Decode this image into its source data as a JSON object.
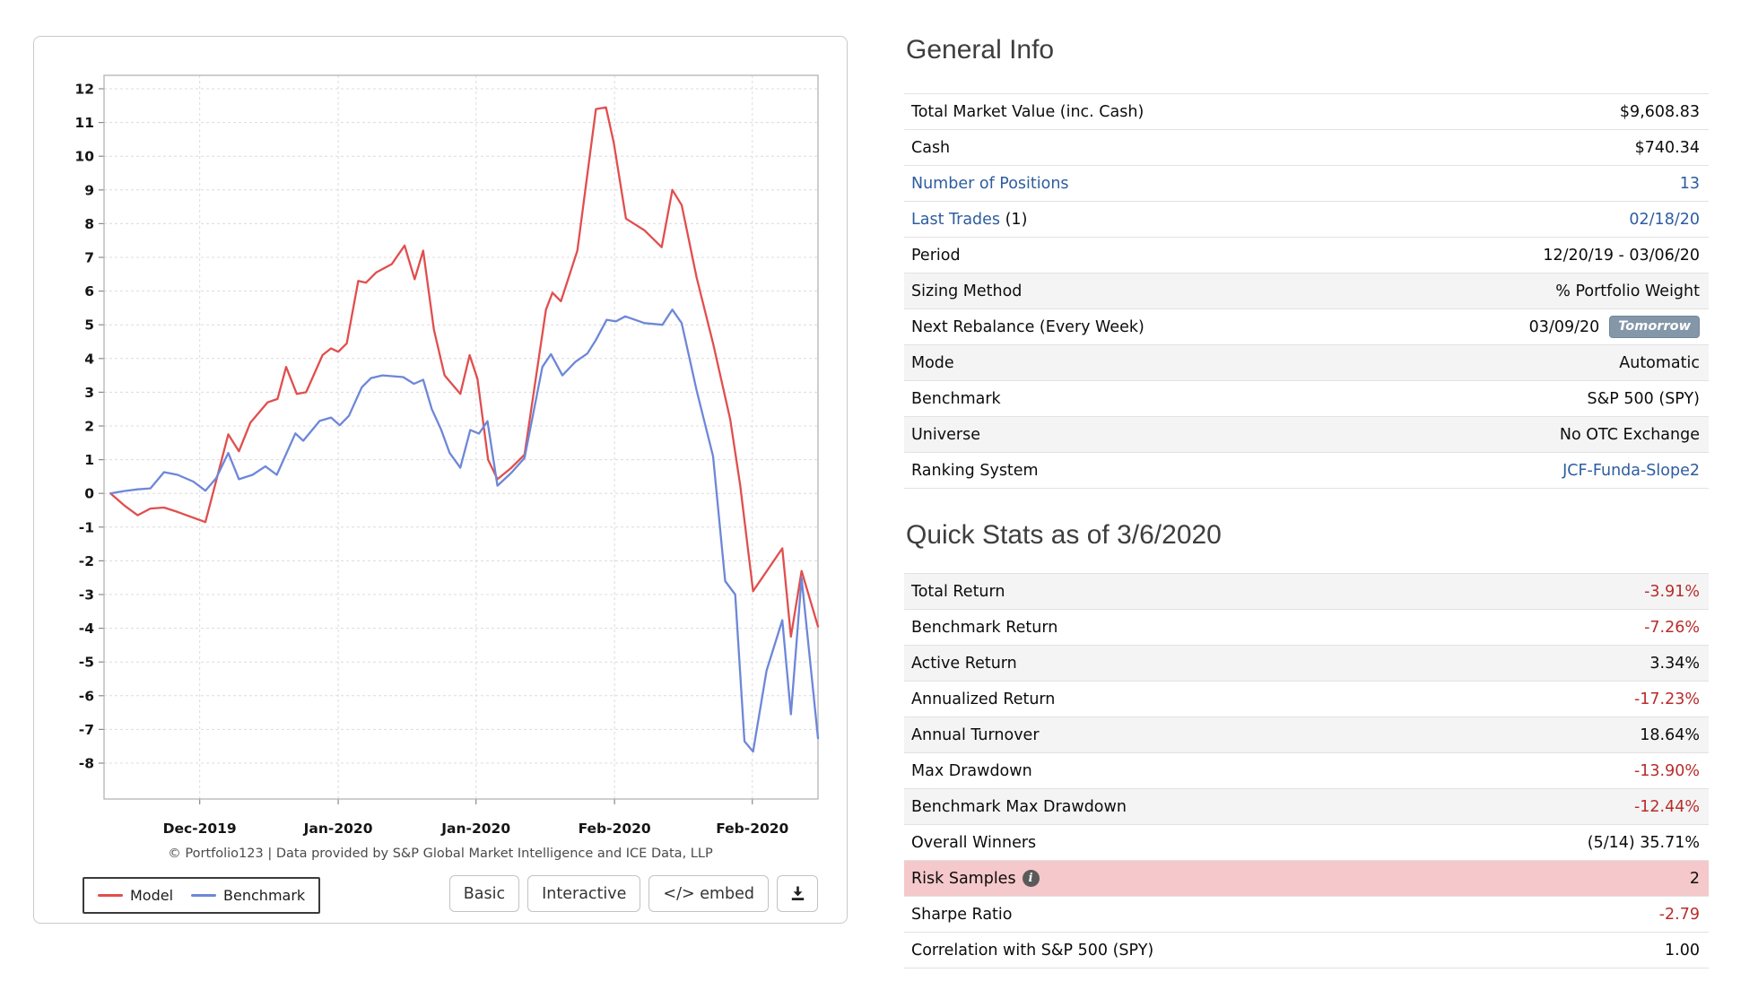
{
  "colors": {
    "model_line": "#e14e4e",
    "benchmark_line": "#6d87d8",
    "link_blue": "#2d5d9f",
    "negative_red": "#b92c2c",
    "risk_row_pink": "#f5c8cb",
    "badge_slate": "#8497a9"
  },
  "chart": {
    "footer": "© Portfolio123 | Data provided by S&P Global Market Intelligence and ICE Data, LLP",
    "legend": [
      {
        "label": "Model",
        "color": "#e14e4e"
      },
      {
        "label": "Benchmark",
        "color": "#6d87d8"
      }
    ],
    "buttons": {
      "basic": "Basic",
      "interactive": "Interactive",
      "embed": "</> embed",
      "download": "download"
    }
  },
  "chart_data": {
    "type": "line",
    "title": "",
    "ylim": [
      -8,
      12
    ],
    "y_tick_step": 1,
    "grid": "dashed",
    "legend_position": "bottom-left",
    "x_ticks": [
      {
        "pos_pct": 13.4,
        "label": "Dec-2019"
      },
      {
        "pos_pct": 32.8,
        "label": "Jan-2020"
      },
      {
        "pos_pct": 52.1,
        "label": "Jan-2020"
      },
      {
        "pos_pct": 71.5,
        "label": "Feb-2020"
      },
      {
        "pos_pct": 90.8,
        "label": "Feb-2020"
      }
    ],
    "series": [
      {
        "name": "Model",
        "color": "#e14e4e",
        "points": [
          [
            0.9,
            0
          ],
          [
            2.8,
            -0.35
          ],
          [
            4.7,
            -0.65
          ],
          [
            6.5,
            -0.45
          ],
          [
            8.4,
            -0.42
          ],
          [
            10.3,
            -0.55
          ],
          [
            12.5,
            -0.72
          ],
          [
            14.2,
            -0.85
          ],
          [
            17.4,
            1.75
          ],
          [
            18.9,
            1.25
          ],
          [
            20.5,
            2.1
          ],
          [
            22.9,
            2.7
          ],
          [
            24.3,
            2.8
          ],
          [
            25.5,
            3.75
          ],
          [
            27.0,
            2.95
          ],
          [
            28.3,
            3.0
          ],
          [
            30.6,
            4.1
          ],
          [
            31.8,
            4.3
          ],
          [
            32.8,
            4.2
          ],
          [
            34.0,
            4.45
          ],
          [
            35.6,
            6.3
          ],
          [
            36.7,
            6.25
          ],
          [
            38.1,
            6.55
          ],
          [
            40.3,
            6.8
          ],
          [
            42.1,
            7.35
          ],
          [
            43.5,
            6.35
          ],
          [
            44.7,
            7.2
          ],
          [
            46.2,
            4.85
          ],
          [
            47.7,
            3.5
          ],
          [
            49.9,
            2.95
          ],
          [
            51.2,
            4.1
          ],
          [
            52.3,
            3.4
          ],
          [
            53.8,
            1.0
          ],
          [
            55.1,
            0.42
          ],
          [
            57.0,
            0.75
          ],
          [
            58.9,
            1.15
          ],
          [
            61.9,
            5.45
          ],
          [
            62.8,
            5.95
          ],
          [
            64.0,
            5.7
          ],
          [
            66.3,
            7.2
          ],
          [
            68.9,
            11.4
          ],
          [
            70.3,
            11.45
          ],
          [
            71.4,
            10.4
          ],
          [
            73.1,
            8.15
          ],
          [
            75.7,
            7.8
          ],
          [
            78.1,
            7.3
          ],
          [
            79.6,
            9.0
          ],
          [
            80.9,
            8.55
          ],
          [
            83.0,
            6.4
          ],
          [
            85.3,
            4.45
          ],
          [
            87.7,
            2.2
          ],
          [
            89.1,
            0.25
          ],
          [
            90.9,
            -2.9
          ],
          [
            95.0,
            -1.63
          ],
          [
            96.2,
            -4.25
          ],
          [
            97.7,
            -2.3
          ],
          [
            100,
            -3.95
          ]
        ]
      },
      {
        "name": "Benchmark",
        "color": "#6d87d8",
        "points": [
          [
            0.9,
            0
          ],
          [
            2.8,
            0.07
          ],
          [
            4.7,
            0.12
          ],
          [
            6.5,
            0.15
          ],
          [
            8.4,
            0.63
          ],
          [
            10.3,
            0.55
          ],
          [
            12.5,
            0.35
          ],
          [
            14.2,
            0.08
          ],
          [
            15.7,
            0.45
          ],
          [
            17.4,
            1.2
          ],
          [
            18.9,
            0.42
          ],
          [
            20.8,
            0.55
          ],
          [
            22.6,
            0.8
          ],
          [
            24.2,
            0.55
          ],
          [
            26.8,
            1.78
          ],
          [
            27.9,
            1.56
          ],
          [
            30.2,
            2.15
          ],
          [
            31.8,
            2.25
          ],
          [
            33.0,
            2.02
          ],
          [
            34.3,
            2.3
          ],
          [
            36.1,
            3.15
          ],
          [
            37.4,
            3.42
          ],
          [
            39.0,
            3.5
          ],
          [
            41.9,
            3.45
          ],
          [
            43.4,
            3.25
          ],
          [
            44.7,
            3.37
          ],
          [
            45.9,
            2.5
          ],
          [
            47.2,
            1.9
          ],
          [
            48.4,
            1.2
          ],
          [
            49.9,
            0.76
          ],
          [
            51.3,
            1.88
          ],
          [
            52.5,
            1.77
          ],
          [
            53.7,
            2.14
          ],
          [
            55.1,
            0.23
          ],
          [
            57.0,
            0.6
          ],
          [
            58.9,
            1.05
          ],
          [
            61.4,
            3.75
          ],
          [
            62.6,
            4.13
          ],
          [
            64.2,
            3.5
          ],
          [
            66.0,
            3.9
          ],
          [
            67.7,
            4.15
          ],
          [
            68.9,
            4.55
          ],
          [
            70.4,
            5.15
          ],
          [
            71.7,
            5.1
          ],
          [
            73.0,
            5.25
          ],
          [
            75.7,
            5.05
          ],
          [
            78.2,
            5.0
          ],
          [
            79.6,
            5.45
          ],
          [
            80.9,
            5.05
          ],
          [
            83.0,
            3.05
          ],
          [
            85.3,
            1.1
          ],
          [
            87.0,
            -2.6
          ],
          [
            88.4,
            -3.0
          ],
          [
            89.7,
            -7.35
          ],
          [
            90.9,
            -7.66
          ],
          [
            92.8,
            -5.25
          ],
          [
            95.0,
            -3.76
          ],
          [
            96.2,
            -6.55
          ],
          [
            97.7,
            -2.51
          ],
          [
            100,
            -7.26
          ]
        ]
      }
    ]
  },
  "general_info": {
    "title": "General Info",
    "rows": [
      {
        "label": "Total Market Value (inc. Cash)",
        "value": "$9,608.83"
      },
      {
        "label": "Cash",
        "value": "$740.34"
      },
      {
        "label": "Number of Positions",
        "label_link": true,
        "value": "13",
        "value_link": true
      },
      {
        "label": "Last Trades",
        "label_link": true,
        "suffix": " (1)",
        "value": "02/18/20",
        "value_link": true
      },
      {
        "label": "Period",
        "value": "12/20/19 - 03/06/20"
      },
      {
        "label": "Sizing Method",
        "value": "% Portfolio Weight",
        "shade": true
      },
      {
        "label": "Next Rebalance (Every Week)",
        "value": "03/09/20",
        "badge": "Tomorrow"
      },
      {
        "label": "Mode",
        "value": "Automatic",
        "shade": true
      },
      {
        "label": "Benchmark",
        "value": "S&P 500 (SPY)"
      },
      {
        "label": "Universe",
        "value": "No OTC Exchange",
        "shade": true
      },
      {
        "label": "Ranking System",
        "value": "JCF-Funda-Slope2",
        "value_link": true
      }
    ]
  },
  "quick_stats": {
    "title": "Quick Stats as of 3/6/2020",
    "rows": [
      {
        "label": "Total Return",
        "value": "-3.91%",
        "negative": true,
        "shade": true
      },
      {
        "label": "Benchmark Return",
        "value": "-7.26%",
        "negative": true
      },
      {
        "label": "Active Return",
        "value": "3.34%",
        "shade": true
      },
      {
        "label": "Annualized Return",
        "value": "-17.23%",
        "negative": true
      },
      {
        "label": "Annual Turnover",
        "value": "18.64%",
        "shade": true
      },
      {
        "label": "Max Drawdown",
        "value": "-13.90%",
        "negative": true
      },
      {
        "label": "Benchmark Max Drawdown",
        "value": "-12.44%",
        "negative": true,
        "shade": true
      },
      {
        "label": "Overall Winners",
        "value": "(5/14) 35.71%"
      },
      {
        "label": "Risk Samples",
        "value": "2",
        "pink": true,
        "info": true
      },
      {
        "label": "Sharpe Ratio",
        "value": "-2.79",
        "negative": true
      },
      {
        "label": "Correlation with S&P 500 (SPY)",
        "value": "1.00"
      }
    ]
  }
}
